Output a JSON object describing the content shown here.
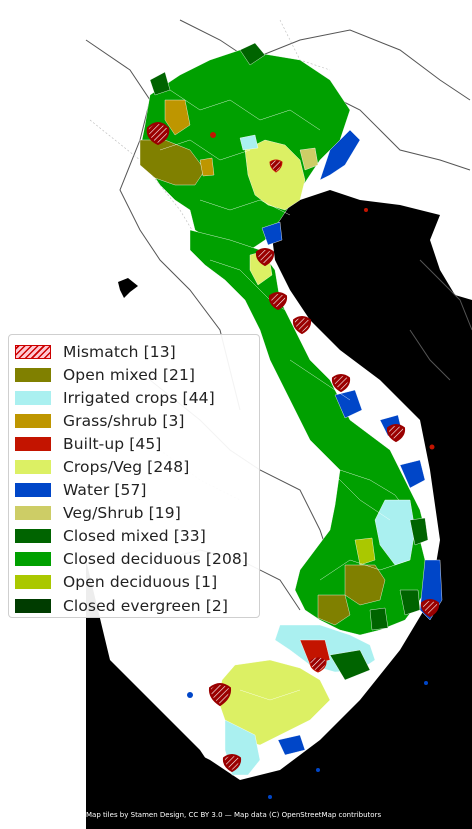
{
  "legend": {
    "items": [
      {
        "label": "Mismatch [13]",
        "color": "#cc0000",
        "fill": "#ffc8d2",
        "hatch": true
      },
      {
        "label": "Open mixed [21]",
        "color": "#808000"
      },
      {
        "label": "Irrigated crops [44]",
        "color": "#aaf0f0"
      },
      {
        "label": "Grass/shrub [3]",
        "color": "#be9600"
      },
      {
        "label": "Built-up [45]",
        "color": "#c31400"
      },
      {
        "label": "Crops/Veg [248]",
        "color": "#dcf064"
      },
      {
        "label": "Water [57]",
        "color": "#0046c8"
      },
      {
        "label": "Veg/Shrub [19]",
        "color": "#cdcd66"
      },
      {
        "label": "Closed mixed [33]",
        "color": "#006400"
      },
      {
        "label": "Closed deciduous [208]",
        "color": "#00a000"
      },
      {
        "label": "Open deciduous [1]",
        "color": "#aac800"
      },
      {
        "label": "Closed evergreen [2]",
        "color": "#003c00"
      }
    ]
  },
  "map": {
    "land_color": "#ffffff",
    "sea_color": "#000000",
    "boundary_color": "#555555",
    "marker_color": "#9a0000"
  },
  "attribution": "Map tiles by Stamen Design, CC BY 3.0 — Map data (C) OpenStreetMap contributors"
}
